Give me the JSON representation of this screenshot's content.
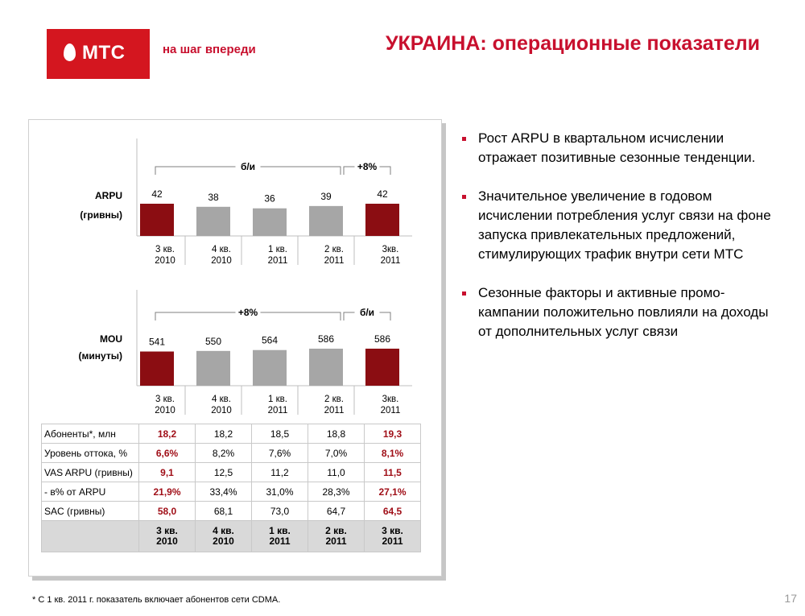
{
  "header": {
    "brand": "МТС",
    "slogan": "на шаг впереди",
    "title": "УКРАИНА: операционные показатели"
  },
  "colors": {
    "brand_red": "#d4161f",
    "bar_highlight": "#8b0d12",
    "bar_regular": "#a6a6a6",
    "text_highlight": "#a00f18"
  },
  "chart_data": [
    {
      "type": "bar",
      "title": "ARPU",
      "unit": "(гривны)",
      "categories": [
        "3 кв. 2010",
        "4 кв. 2010",
        "1 кв. 2011",
        "2 кв. 2011",
        "3кв. 2011"
      ],
      "values": [
        42,
        38,
        36,
        39,
        42
      ],
      "labels": [
        "42",
        "38",
        "36",
        "39",
        "42"
      ],
      "highlighted": [
        true,
        false,
        false,
        false,
        true
      ],
      "annotations": [
        {
          "text": "б/и",
          "from": "3 кв. 2010",
          "to": "2 кв. 2011"
        },
        {
          "text": "+8%",
          "from": "2 кв. 2011",
          "to": "3кв. 2011"
        }
      ]
    },
    {
      "type": "bar",
      "title": "MOU",
      "unit": "(минуты)",
      "categories": [
        "3 кв. 2010",
        "4 кв. 2010",
        "1 кв. 2011",
        "2 кв. 2011",
        "3кв. 2011"
      ],
      "values": [
        541,
        550,
        564,
        586,
        586
      ],
      "labels": [
        "541",
        "550",
        "564",
        "586",
        "586"
      ],
      "highlighted": [
        true,
        false,
        false,
        false,
        true
      ],
      "annotations": [
        {
          "text": "+8%",
          "from": "3 кв. 2010",
          "to": "2 кв. 2011"
        },
        {
          "text": "б/и",
          "from": "2 кв. 2011",
          "to": "3кв. 2011"
        }
      ]
    }
  ],
  "ticks": {
    "arpu": [
      [
        "3 кв.",
        "2010"
      ],
      [
        "4 кв.",
        "2010"
      ],
      [
        "1 кв.",
        "2011"
      ],
      [
        "2 кв.",
        "2011"
      ],
      [
        "3кв.",
        "2011"
      ]
    ],
    "mou": [
      [
        "3 кв.",
        "2010"
      ],
      [
        "4 кв.",
        "2010"
      ],
      [
        "1 кв.",
        "2011"
      ],
      [
        "2 кв.",
        "2011"
      ],
      [
        "3кв.",
        "2011"
      ]
    ]
  },
  "table": {
    "rows": [
      {
        "label": "Абоненты*, млн",
        "values": [
          "18,2",
          "18,2",
          "18,5",
          "18,8",
          "19,3"
        ]
      },
      {
        "label": "Уровень оттока, %",
        "values": [
          "6,6%",
          "8,2%",
          "7,6%",
          "7,0%",
          "8,1%"
        ]
      },
      {
        "label": "VAS ARPU (гривны)",
        "values": [
          "9,1",
          "12,5",
          "11,2",
          "11,0",
          "11,5"
        ]
      },
      {
        "label": "- в% от ARPU",
        "values": [
          "21,9%",
          "33,4%",
          "31,0%",
          "28,3%",
          "27,1%"
        ]
      },
      {
        "label": "SAC (гривны)",
        "values": [
          "58,0",
          "68,1",
          "73,0",
          "64,7",
          "64,5"
        ]
      }
    ],
    "periods": [
      [
        "3 кв.",
        "2010"
      ],
      [
        "4 кв.",
        "2010"
      ],
      [
        "1 кв.",
        "2011"
      ],
      [
        "2 кв.",
        "2011"
      ],
      [
        "3 кв.",
        "2011"
      ]
    ]
  },
  "bullets": [
    "Рост ARPU в квартальном исчислении отражает позитивные сезонные тенденции.",
    "Значительное увеличение в годовом исчислении потребления услуг связи на фоне запуска привлекательных предложений, стимулирующих трафик внутри сети МТС",
    "Сезонные факторы и активные промо-кампании положительно повлияли на доходы от дополнительных услуг связи"
  ],
  "footnote": "* С 1 кв. 2011 г. показатель включает абонентов сети CDMA.",
  "page_number": "17"
}
